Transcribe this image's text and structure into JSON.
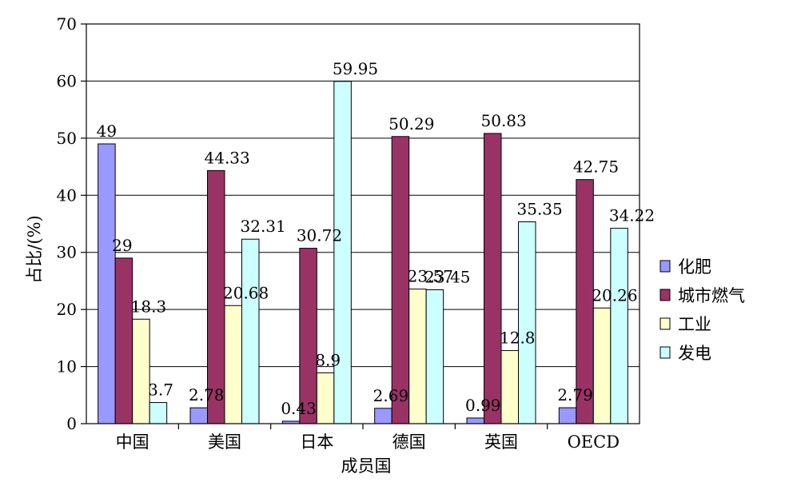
{
  "chart_data": {
    "type": "bar",
    "title": "",
    "xlabel": "成员国",
    "ylabel": "占比/(%)",
    "ylim": [
      0,
      70
    ],
    "yticks": [
      0,
      10,
      20,
      30,
      40,
      50,
      60,
      70
    ],
    "grid": true,
    "legend_position": "right",
    "categories": [
      "中国",
      "美国",
      "日本",
      "德国",
      "英国",
      "OECD"
    ],
    "series": [
      {
        "name": "化肥",
        "color": "#9999FF",
        "values": [
          49,
          2.78,
          0.43,
          2.69,
          0.99,
          2.79
        ],
        "labels": [
          "49",
          "2.78",
          "0.43",
          "2.69",
          "0.99",
          "2.79"
        ]
      },
      {
        "name": "城市燃气",
        "color": "#993366",
        "values": [
          29,
          44.33,
          30.72,
          50.29,
          50.83,
          42.75
        ],
        "labels": [
          "29",
          "44.33",
          "30.72",
          "50.29",
          "50.83",
          "42.75"
        ]
      },
      {
        "name": "工业",
        "color": "#FFFFCC",
        "values": [
          18.3,
          20.68,
          8.9,
          23.57,
          12.8,
          20.26
        ],
        "labels": [
          "18.3",
          "20.68",
          "8.9",
          "23.57",
          "12.8",
          "20.26"
        ]
      },
      {
        "name": "发电",
        "color": "#CCFFFF",
        "values": [
          3.7,
          32.31,
          59.95,
          23.45,
          35.35,
          34.22
        ],
        "labels": [
          "3.7",
          "32.31",
          "59.95",
          "23.45",
          "35.35",
          "34.22"
        ]
      }
    ]
  }
}
